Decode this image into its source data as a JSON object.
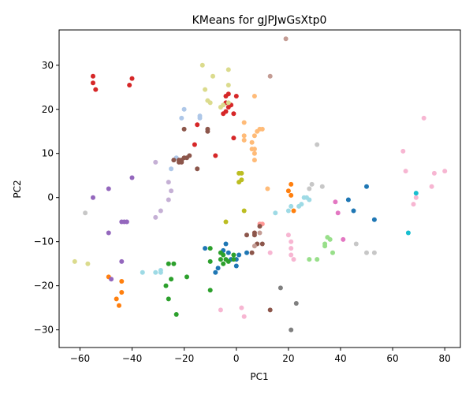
{
  "chart_data": {
    "type": "scatter",
    "title": "KMeans for gJPJwGsXtp0",
    "xlabel": "PC1",
    "ylabel": "PC2",
    "xlim": [
      -68,
      86
    ],
    "ylim": [
      -34,
      38
    ],
    "xticks": [
      -60,
      -40,
      -20,
      0,
      20,
      40,
      60,
      80
    ],
    "yticks": [
      -30,
      -20,
      -10,
      0,
      10,
      20,
      30
    ],
    "grid": false,
    "legend": "none",
    "series": [
      {
        "color": "#1f77b4",
        "points": [
          [
            -12,
            -11.5
          ],
          [
            -5,
            -12
          ],
          [
            -4,
            -10.5
          ],
          [
            -7,
            -16
          ],
          [
            -8,
            -17
          ],
          [
            0,
            -15.5
          ],
          [
            -2,
            -14
          ],
          [
            0,
            -14
          ],
          [
            1,
            -13
          ],
          [
            4,
            -12.5
          ],
          [
            -3,
            -12.5
          ],
          [
            43,
            -0.5
          ],
          [
            45,
            -3
          ],
          [
            50,
            2.5
          ],
          [
            53,
            -5
          ]
        ]
      },
      {
        "color": "#aec7e8",
        "points": [
          [
            -20,
            20
          ],
          [
            -21,
            18
          ],
          [
            -14,
            18
          ],
          [
            -14,
            18.5
          ],
          [
            -23,
            9
          ],
          [
            -25,
            6.5
          ]
        ]
      },
      {
        "color": "#ff7f0e",
        "points": [
          [
            -49,
            -18
          ],
          [
            -44,
            -19
          ],
          [
            -44,
            -21.5
          ],
          [
            -46,
            -23
          ],
          [
            -45,
            -24.5
          ],
          [
            20,
            1.5
          ],
          [
            21,
            0.5
          ],
          [
            21,
            3
          ],
          [
            22,
            -3
          ]
        ]
      },
      {
        "color": "#ffbb78",
        "points": [
          [
            3,
            17
          ],
          [
            7,
            23
          ],
          [
            3,
            14
          ],
          [
            3,
            13
          ],
          [
            6,
            11
          ],
          [
            6,
            12.5
          ],
          [
            7,
            14
          ],
          [
            7,
            11
          ],
          [
            7,
            10
          ],
          [
            8,
            15
          ],
          [
            9,
            15.5
          ],
          [
            10,
            15.5
          ],
          [
            7,
            8.5
          ],
          [
            12,
            2
          ]
        ]
      },
      {
        "color": "#2ca02c",
        "points": [
          [
            -10,
            -11.5
          ],
          [
            -6,
            -12.5
          ],
          [
            -5,
            -13
          ],
          [
            -6,
            -14
          ],
          [
            -4,
            -14
          ],
          [
            -3,
            -14.5
          ],
          [
            -5,
            -15
          ],
          [
            -1,
            -14
          ],
          [
            -10,
            -14.5
          ],
          [
            -24,
            -15
          ],
          [
            -26,
            -15
          ],
          [
            -19,
            -18
          ],
          [
            -25,
            -18.5
          ],
          [
            -27,
            -20
          ],
          [
            -26,
            -23
          ],
          [
            -10,
            -21
          ],
          [
            -23,
            -26.5
          ],
          [
            -1,
            -13
          ]
        ]
      },
      {
        "color": "#98df8a",
        "points": [
          [
            28,
            -14
          ],
          [
            31,
            -14
          ],
          [
            34,
            -11
          ],
          [
            34,
            -10.5
          ],
          [
            35,
            -9
          ],
          [
            36,
            -9.5
          ],
          [
            37,
            -12.5
          ]
        ]
      },
      {
        "color": "#d62728",
        "points": [
          [
            -55,
            27.5
          ],
          [
            -55,
            26
          ],
          [
            -54,
            24.5
          ],
          [
            -40,
            27
          ],
          [
            -41,
            25.5
          ],
          [
            -4,
            23
          ],
          [
            -3,
            23.5
          ],
          [
            0,
            23
          ],
          [
            -4,
            21.5
          ],
          [
            -2,
            21
          ],
          [
            -3,
            20.5
          ],
          [
            -1,
            19
          ],
          [
            -4,
            19.5
          ],
          [
            -5,
            19
          ],
          [
            -1,
            13.5
          ],
          [
            -15,
            16.5
          ],
          [
            -16,
            12
          ],
          [
            -8,
            9.5
          ]
        ]
      },
      {
        "color": "#ff9896",
        "points": [
          [
            7,
            -8
          ],
          [
            9,
            -6
          ],
          [
            10,
            -6
          ]
        ]
      },
      {
        "color": "#9467bd",
        "points": [
          [
            -55,
            0
          ],
          [
            -49,
            2
          ],
          [
            -49,
            -8
          ],
          [
            -48,
            -18.5
          ],
          [
            -44,
            -5.5
          ],
          [
            -43,
            -5.5
          ],
          [
            -42,
            -5.5
          ],
          [
            -40,
            4.5
          ],
          [
            -44,
            -14.5
          ]
        ]
      },
      {
        "color": "#c5b0d5",
        "points": [
          [
            -31,
            8
          ],
          [
            -26,
            3.5
          ],
          [
            -25,
            1.5
          ],
          [
            -26,
            -0.5
          ],
          [
            -29,
            -3
          ],
          [
            -31,
            -4.5
          ]
        ]
      },
      {
        "color": "#8c564b",
        "points": [
          [
            -24,
            8.5
          ],
          [
            -22,
            8
          ],
          [
            -21,
            8
          ],
          [
            -20,
            9
          ],
          [
            -19,
            9
          ],
          [
            -18,
            9.5
          ],
          [
            -20,
            15.5
          ],
          [
            -15,
            6.5
          ],
          [
            -11,
            15
          ],
          [
            -11,
            15.5
          ],
          [
            -21,
            8.5
          ],
          [
            -22,
            8.5
          ],
          [
            4,
            -8.5
          ],
          [
            7,
            -8
          ],
          [
            7,
            -8.5
          ],
          [
            9,
            -6.5
          ],
          [
            6,
            -12.5
          ],
          [
            8,
            -10.5
          ],
          [
            10,
            -10.5
          ],
          [
            13,
            -25.5
          ]
        ]
      },
      {
        "color": "#c49c94",
        "points": [
          [
            13,
            27.5
          ],
          [
            19,
            36
          ],
          [
            7,
            -11
          ],
          [
            9,
            -8
          ]
        ]
      },
      {
        "color": "#e377c2",
        "points": [
          [
            38,
            -1
          ],
          [
            39,
            -3.5
          ],
          [
            41,
            -9.5
          ]
        ]
      },
      {
        "color": "#f7b6d2",
        "points": [
          [
            20,
            -8.5
          ],
          [
            21,
            -10
          ],
          [
            21,
            -11.5
          ],
          [
            21,
            -13
          ],
          [
            22,
            -14
          ],
          [
            13,
            -12.5
          ],
          [
            2,
            -25
          ],
          [
            3,
            -27
          ],
          [
            -6,
            -25.5
          ],
          [
            64,
            10.5
          ],
          [
            65,
            6
          ],
          [
            69,
            0
          ],
          [
            68,
            -1.5
          ],
          [
            72,
            18
          ],
          [
            75,
            2.5
          ],
          [
            76,
            5.5
          ],
          [
            80,
            6
          ]
        ]
      },
      {
        "color": "#7f7f7f",
        "points": [
          [
            17,
            -20.5
          ],
          [
            21,
            -30
          ],
          [
            23,
            -24
          ]
        ]
      },
      {
        "color": "#c7c7c7",
        "points": [
          [
            28,
            2
          ],
          [
            29,
            3
          ],
          [
            31,
            12
          ],
          [
            33,
            2.5
          ],
          [
            46,
            -10.5
          ],
          [
            50,
            -12.5
          ],
          [
            53,
            -12.5
          ],
          [
            -58,
            -3.5
          ]
        ]
      },
      {
        "color": "#bcbd22",
        "points": [
          [
            1,
            5.5
          ],
          [
            2,
            5.5
          ],
          [
            1,
            3.5
          ],
          [
            2,
            4
          ],
          [
            3,
            -3
          ],
          [
            -4,
            -5.5
          ]
        ]
      },
      {
        "color": "#dbdb8d",
        "points": [
          [
            -13,
            30
          ],
          [
            -9,
            27.5
          ],
          [
            -3,
            29
          ],
          [
            -12,
            24.5
          ],
          [
            -3,
            25.5
          ],
          [
            -11,
            22
          ],
          [
            -10,
            21.5
          ],
          [
            -6,
            20.5
          ],
          [
            -5,
            21
          ],
          [
            -3,
            21.5
          ],
          [
            -62,
            -14.5
          ],
          [
            -57,
            -15
          ]
        ]
      },
      {
        "color": "#17becf",
        "points": [
          [
            69,
            1
          ],
          [
            66,
            -8
          ]
        ]
      },
      {
        "color": "#9edae5",
        "points": [
          [
            24,
            -2
          ],
          [
            25,
            -1.5
          ],
          [
            26,
            0
          ],
          [
            27,
            0
          ],
          [
            28,
            -0.5
          ],
          [
            20,
            -3
          ],
          [
            21,
            -2
          ],
          [
            15,
            -3.5
          ],
          [
            -36,
            -17
          ],
          [
            -31,
            -17
          ],
          [
            -29,
            -16.5
          ],
          [
            -29,
            -17
          ]
        ]
      }
    ]
  }
}
